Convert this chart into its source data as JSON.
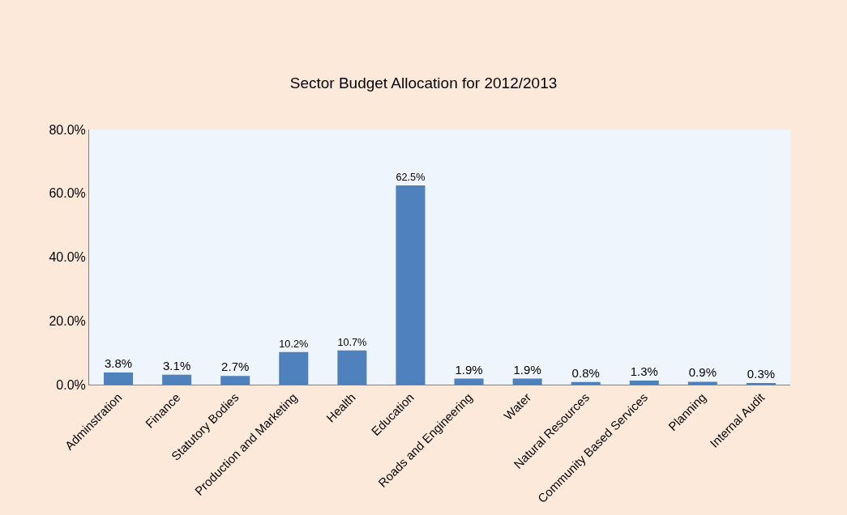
{
  "chart_data": {
    "type": "bar",
    "title": "Sector Budget Allocation for 2012/2013",
    "categories": [
      "Adminstration",
      "Finance",
      "Statutory Bodies",
      "Production and Marketing",
      "Health",
      "Education",
      "Roads and Engineering",
      "Water",
      "Natural Resources",
      "Community Based Services",
      "Planning",
      "Internal Audit"
    ],
    "values": [
      3.8,
      3.1,
      2.7,
      10.2,
      10.7,
      62.5,
      1.9,
      1.9,
      0.8,
      1.3,
      0.9,
      0.3
    ],
    "value_labels": [
      "3.8%",
      "3.1%",
      "2.7%",
      "10.2%",
      "10.7%",
      "62.5%",
      "1.9%",
      "1.9%",
      "0.8%",
      "1.3%",
      "0.9%",
      "0.3%"
    ],
    "color": "#4f81bd",
    "ylim": [
      0,
      80
    ],
    "yticks": [
      {
        "value": 0,
        "label": "0.0%"
      },
      {
        "value": 20,
        "label": "20.0%"
      },
      {
        "value": 40,
        "label": "40.0%"
      },
      {
        "value": 60,
        "label": "60.0%"
      },
      {
        "value": 80,
        "label": "80.0%"
      }
    ]
  }
}
